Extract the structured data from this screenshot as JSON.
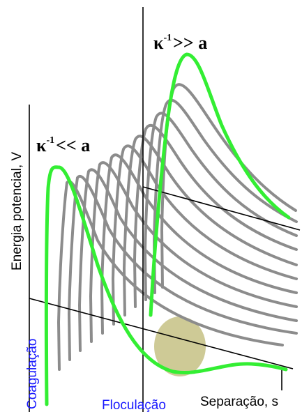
{
  "labels": {
    "y_axis": "Energia potencial, V",
    "x_axis": "Separação, s",
    "coagulation": "Coagulação",
    "flocculation": "Floculação",
    "kappa_large_symbol": "κ",
    "kappa_large_exp": "-1",
    "kappa_large_rel": ">> a",
    "kappa_small_symbol": "κ",
    "kappa_small_exp": "-1",
    "kappa_small_rel": "<< a"
  },
  "colors": {
    "green": "#33ee33",
    "grey": "#8c8c8c",
    "axis": "#000000",
    "blue_label": "#1a1aff",
    "floc_blob": "#b9b46a"
  }
}
